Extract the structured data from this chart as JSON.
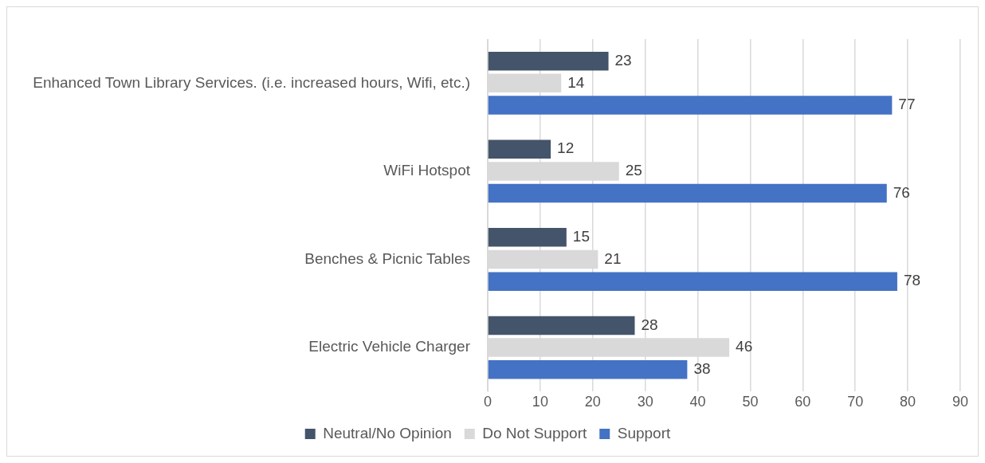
{
  "chart_data": {
    "type": "bar",
    "orientation": "horizontal",
    "categories": [
      "Enhanced Town Library Services. (i.e. increased hours, Wifi, etc.)",
      "WiFi Hotspot",
      "Benches & Picnic Tables",
      "Electric Vehicle Charger"
    ],
    "series": [
      {
        "name": "Neutral/No Opinion",
        "color": "#44546a",
        "values": [
          23,
          12,
          15,
          28
        ]
      },
      {
        "name": "Do Not Support",
        "color": "#d9d9d9",
        "values": [
          14,
          25,
          21,
          46
        ]
      },
      {
        "name": "Support",
        "color": "#4472c4",
        "values": [
          77,
          76,
          78,
          38
        ]
      }
    ],
    "xlim": [
      0,
      90
    ],
    "xticks": [
      0,
      10,
      20,
      30,
      40,
      50,
      60,
      70,
      80,
      90
    ],
    "grid": "x",
    "legend": "bottom",
    "data_labels": true
  }
}
